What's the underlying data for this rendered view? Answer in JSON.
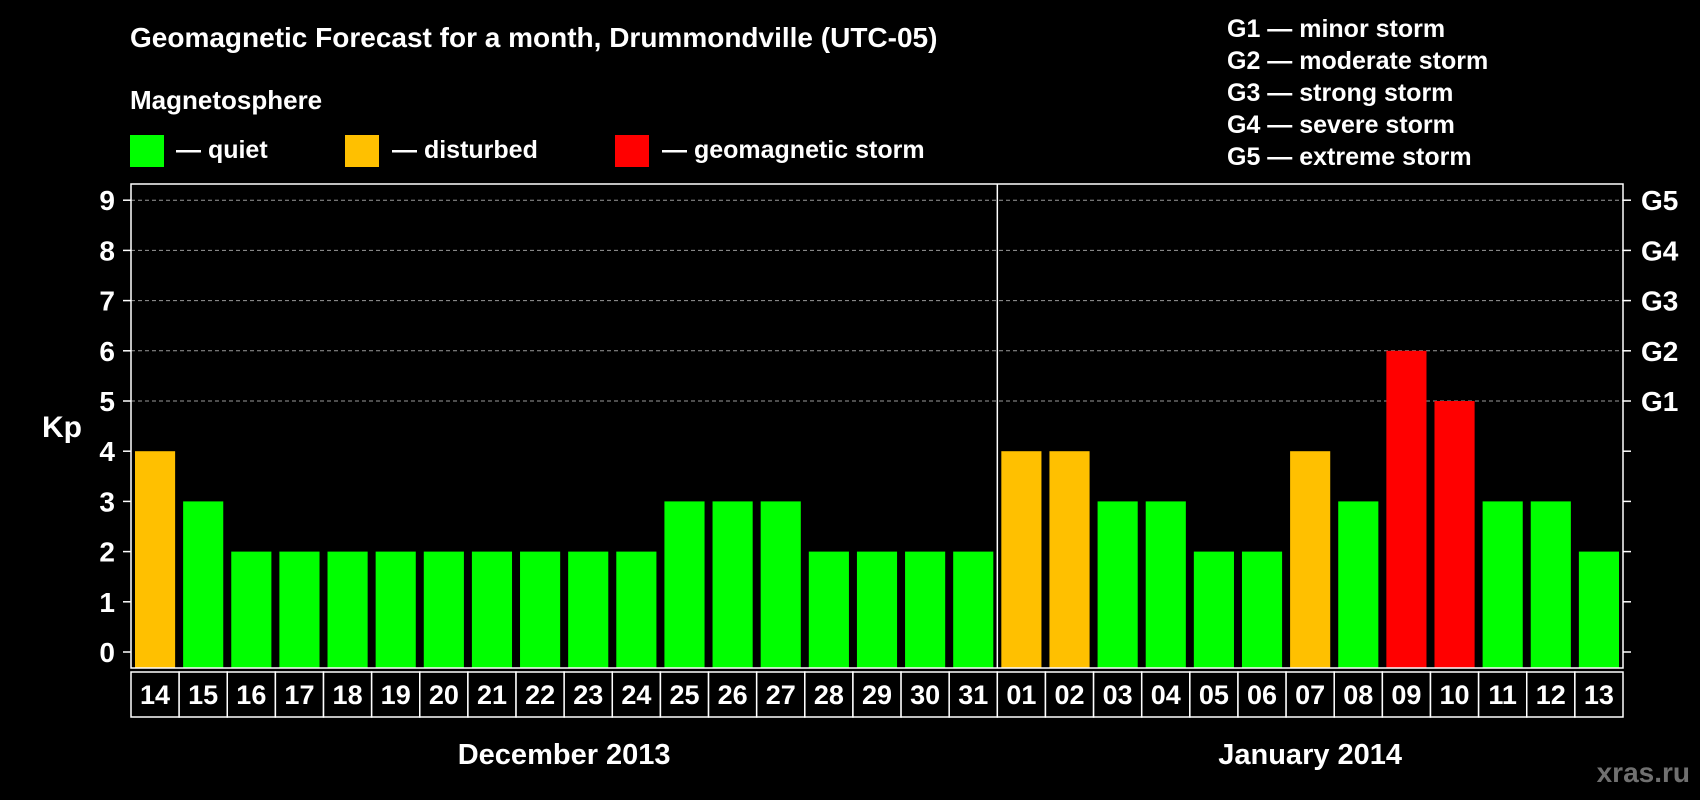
{
  "header": {
    "title": "Geomagnetic Forecast for a month, Drummondville (UTC-05)",
    "subtitle": "Magnetosphere"
  },
  "legend": [
    {
      "label": "— quiet",
      "color": "#00ff00"
    },
    {
      "label": "— disturbed",
      "color": "#ffc000"
    },
    {
      "label": "— geomagnetic storm",
      "color": "#ff0000"
    }
  ],
  "storm_scale": [
    "G1 — minor storm",
    "G2 — moderate storm",
    "G3 — strong storm",
    "G4 — severe storm",
    "G5 — extreme storm"
  ],
  "watermark": "xras.ru",
  "chart_data": {
    "type": "bar",
    "title": "Geomagnetic Forecast for a month, Drummondville (UTC-05)",
    "ylabel": "Kp",
    "ylim": [
      0,
      9
    ],
    "yticks": [
      "0",
      "1",
      "2",
      "3",
      "4",
      "5",
      "6",
      "7",
      "8",
      "9"
    ],
    "right_axis": [
      {
        "value": 5,
        "label": "G1"
      },
      {
        "value": 6,
        "label": "G2"
      },
      {
        "value": 7,
        "label": "G3"
      },
      {
        "value": 8,
        "label": "G4"
      },
      {
        "value": 9,
        "label": "G5"
      }
    ],
    "categories": [
      "14",
      "15",
      "16",
      "17",
      "18",
      "19",
      "20",
      "21",
      "22",
      "23",
      "24",
      "25",
      "26",
      "27",
      "28",
      "29",
      "30",
      "31",
      "01",
      "02",
      "03",
      "04",
      "05",
      "06",
      "07",
      "08",
      "09",
      "10",
      "11",
      "12",
      "13"
    ],
    "values": [
      4,
      3,
      2,
      2,
      2,
      2,
      2,
      2,
      2,
      2,
      2,
      3,
      3,
      3,
      2,
      2,
      2,
      2,
      4,
      4,
      3,
      3,
      2,
      2,
      4,
      3,
      6,
      5,
      3,
      3,
      2
    ],
    "colors": {
      "quiet": "#00ff00",
      "disturbed": "#ffc000",
      "storm": "#ff0000"
    },
    "months": [
      {
        "label": "December 2013",
        "start": 0,
        "end": 17
      },
      {
        "label": "January 2014",
        "start": 18,
        "end": 30
      }
    ],
    "grid": true
  }
}
